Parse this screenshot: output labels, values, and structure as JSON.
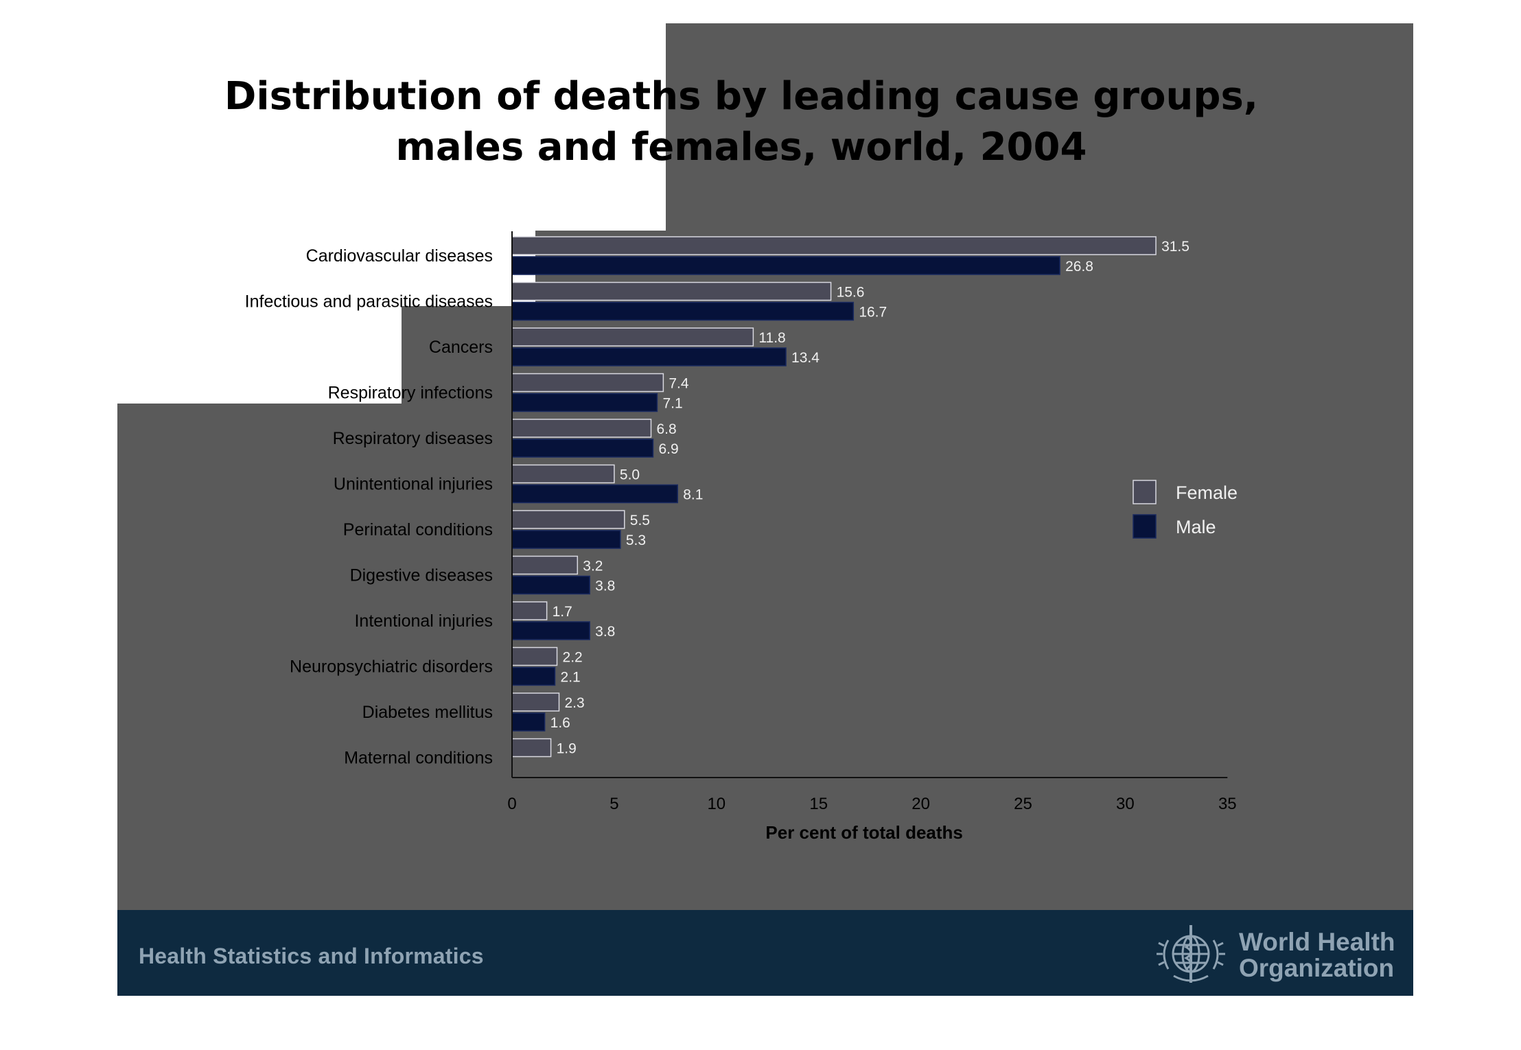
{
  "slide": {
    "title_line1": "Distribution of deaths by leading cause groups,",
    "title_line2": "males and females, world, 2004",
    "footer_text": "Health Statistics and Informatics",
    "logo_line1": "World Health",
    "logo_line2": "Organization",
    "colors": {
      "background": "#5a5a5a",
      "footer": "#0e2a40",
      "female_bar": "#4a4a58",
      "male_bar": "#06123a"
    }
  },
  "chart_data": {
    "type": "bar",
    "orientation": "horizontal",
    "title": "Distribution of deaths by leading cause groups, males and females, world, 2004",
    "xlabel": "Per cent of total deaths",
    "ylabel": "",
    "xlim": [
      0,
      35
    ],
    "xticks": [
      0,
      5,
      10,
      15,
      20,
      25,
      30,
      35
    ],
    "grid": false,
    "legend_position": "right",
    "categories": [
      "Cardiovascular diseases",
      "Infectious and parasitic diseases",
      "Cancers",
      "Respiratory infections",
      "Respiratory diseases",
      "Unintentional injuries",
      "Perinatal conditions",
      "Digestive diseases",
      "Intentional injuries",
      "Neuropsychiatric disorders",
      "Diabetes mellitus",
      "Maternal conditions"
    ],
    "series": [
      {
        "name": "Female",
        "color": "#4a4a58",
        "values": [
          31.5,
          15.6,
          11.8,
          7.4,
          6.8,
          5.0,
          5.5,
          3.2,
          1.7,
          2.2,
          2.3,
          1.9
        ],
        "labels": [
          "31.5",
          "15.6",
          "11.8",
          "7.4",
          "6.8",
          "5.0",
          "5.5",
          "3.2",
          "1.7",
          "2.2",
          "2.3",
          "1.9"
        ]
      },
      {
        "name": "Male",
        "color": "#06123a",
        "values": [
          26.8,
          16.7,
          13.4,
          7.1,
          6.9,
          8.1,
          5.3,
          3.8,
          3.8,
          2.1,
          1.6,
          null
        ],
        "labels": [
          "26.8",
          "16.7",
          "13.4",
          "7.1",
          "6.9",
          "8.1",
          "5.3",
          "3.8",
          "3.8",
          "2.1",
          "1.6",
          ""
        ]
      }
    ]
  }
}
